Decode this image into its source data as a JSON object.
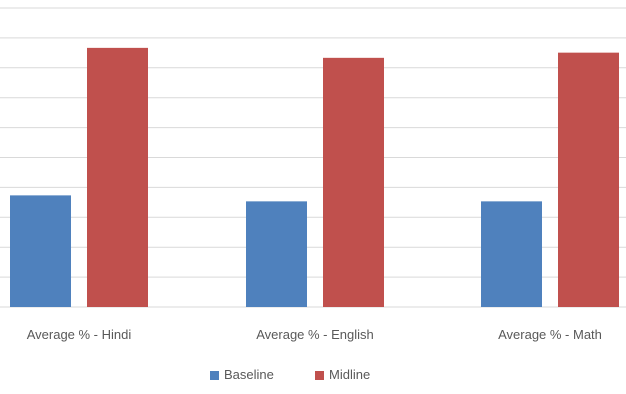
{
  "chart_data": {
    "type": "bar",
    "title": "",
    "xlabel": "",
    "ylabel": "",
    "categories": [
      "Average % - Hindi",
      "Average % - English",
      "Average % - Math"
    ],
    "series": [
      {
        "name": "Baseline",
        "color": "#4f81bd",
        "values": [
          28,
          26.5,
          26.5
        ]
      },
      {
        "name": "Midline",
        "color": "#c0504d",
        "values": [
          65,
          62.5,
          63.8
        ]
      }
    ],
    "ylim": [
      0,
      75
    ],
    "y_gridline_step": 7.5,
    "grid": true,
    "legend_position": "bottom"
  }
}
